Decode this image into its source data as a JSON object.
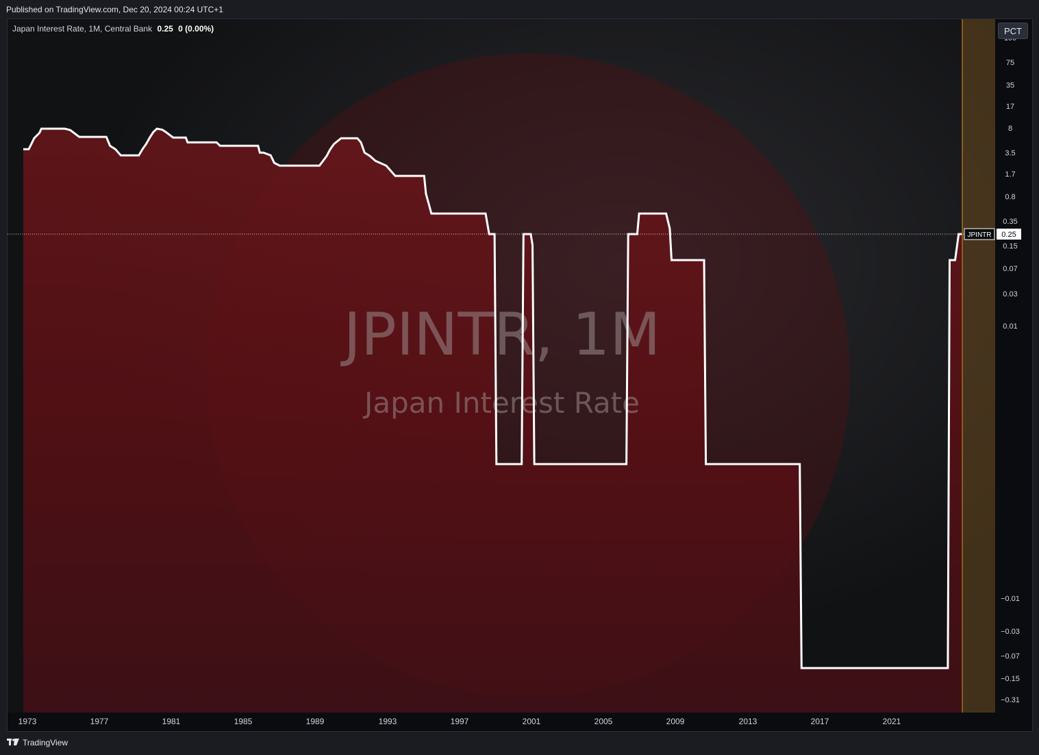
{
  "header": {
    "published": "Published on TradingView.com, Dec 20, 2024 00:24 UTC+1"
  },
  "legend": {
    "symbol": "Japan Interest Rate, 1M, Central Bank",
    "value": "0.25",
    "change": "0 (0.00%)"
  },
  "scale_button": {
    "label": "PCT"
  },
  "price_tag": {
    "symbol": "JPINTR",
    "value": "0.25"
  },
  "watermark": {
    "line1": "JPINTR, 1M",
    "line2": "Japan Interest Rate"
  },
  "footer": {
    "logo_icon": "tradingview-logo-icon",
    "brand": "TradingView"
  },
  "colors": {
    "line": "#ffffff",
    "fill": "#7a1218",
    "highlight": "#e0901a",
    "background": "#0b0c0f"
  },
  "chart_data": {
    "type": "line",
    "title": "Japan Interest Rate",
    "series": [
      {
        "name": "JPINTR",
        "values": [
          [
            1973.0,
            4.25
          ],
          [
            1973.3,
            4.25
          ],
          [
            1973.4,
            5.0
          ],
          [
            1973.6,
            6.0
          ],
          [
            1973.9,
            7.0
          ],
          [
            1974.0,
            9.0
          ],
          [
            1975.3,
            9.0
          ],
          [
            1975.6,
            8.0
          ],
          [
            1975.8,
            7.0
          ],
          [
            1976.1,
            6.5
          ],
          [
            1977.6,
            6.5
          ],
          [
            1977.8,
            5.0
          ],
          [
            1978.1,
            4.25
          ],
          [
            1978.4,
            3.5
          ],
          [
            1979.4,
            3.5
          ],
          [
            1979.6,
            4.25
          ],
          [
            1979.8,
            5.25
          ],
          [
            1980.0,
            6.25
          ],
          [
            1980.2,
            7.25
          ],
          [
            1980.4,
            9.0
          ],
          [
            1980.7,
            8.25
          ],
          [
            1980.9,
            7.25
          ],
          [
            1981.3,
            6.25
          ],
          [
            1982.0,
            6.25
          ],
          [
            1982.1,
            5.5
          ],
          [
            1983.7,
            5.5
          ],
          [
            1983.9,
            5.0
          ],
          [
            1986.0,
            5.0
          ],
          [
            1986.1,
            4.5
          ],
          [
            1986.3,
            4.0
          ],
          [
            1986.7,
            3.5
          ],
          [
            1986.9,
            3.0
          ],
          [
            1987.2,
            2.5
          ],
          [
            1989.4,
            2.5
          ],
          [
            1989.6,
            3.25
          ],
          [
            1989.8,
            3.75
          ],
          [
            1990.0,
            4.25
          ],
          [
            1990.2,
            5.25
          ],
          [
            1990.6,
            6.0
          ],
          [
            1991.5,
            6.0
          ],
          [
            1991.7,
            5.5
          ],
          [
            1991.9,
            4.5
          ],
          [
            1992.2,
            3.75
          ],
          [
            1992.5,
            3.25
          ],
          [
            1993.1,
            2.5
          ],
          [
            1993.6,
            1.75
          ],
          [
            1995.2,
            1.75
          ],
          [
            1995.3,
            1.0
          ],
          [
            1995.6,
            0.5
          ],
          [
            1998.6,
            0.5
          ],
          [
            1998.8,
            0.25
          ],
          [
            1999.1,
            0.25
          ],
          [
            1999.2,
            0.001
          ],
          [
            2000.6,
            0.001
          ],
          [
            2000.7,
            0.25
          ],
          [
            2001.1,
            0.25
          ],
          [
            2001.2,
            0.15
          ],
          [
            2001.3,
            0.001
          ],
          [
            2006.4,
            0.001
          ],
          [
            2006.5,
            0.25
          ],
          [
            2007.0,
            0.25
          ],
          [
            2007.1,
            0.5
          ],
          [
            2008.6,
            0.5
          ],
          [
            2008.8,
            0.3
          ],
          [
            2008.9,
            0.1
          ],
          [
            2010.7,
            0.1
          ],
          [
            2010.8,
            0.001
          ],
          [
            2016.0,
            0.001
          ],
          [
            2016.1,
            -0.1
          ],
          [
            2024.2,
            -0.1
          ],
          [
            2024.3,
            0.1
          ],
          [
            2024.6,
            0.1
          ],
          [
            2024.8,
            0.25
          ],
          [
            2024.97,
            0.25
          ]
        ]
      }
    ],
    "x_ticks": [
      "1973",
      "1977",
      "1981",
      "1985",
      "1989",
      "1993",
      "1997",
      "2001",
      "2005",
      "2009",
      "2013",
      "2017",
      "2021"
    ],
    "y_ticks": [
      "100",
      "75",
      "35",
      "17",
      "8",
      "3.5",
      "1.7",
      "0.8",
      "0.35",
      "0.15",
      "0.07",
      "0.03",
      "0.01",
      "−0.01",
      "−0.03",
      "−0.07",
      "−0.15",
      "−0.31"
    ],
    "last_value": 0.25,
    "highlight_region": [
      2024.0,
      2025.0
    ],
    "y_scale": "percent (log-like)",
    "grid": false
  }
}
